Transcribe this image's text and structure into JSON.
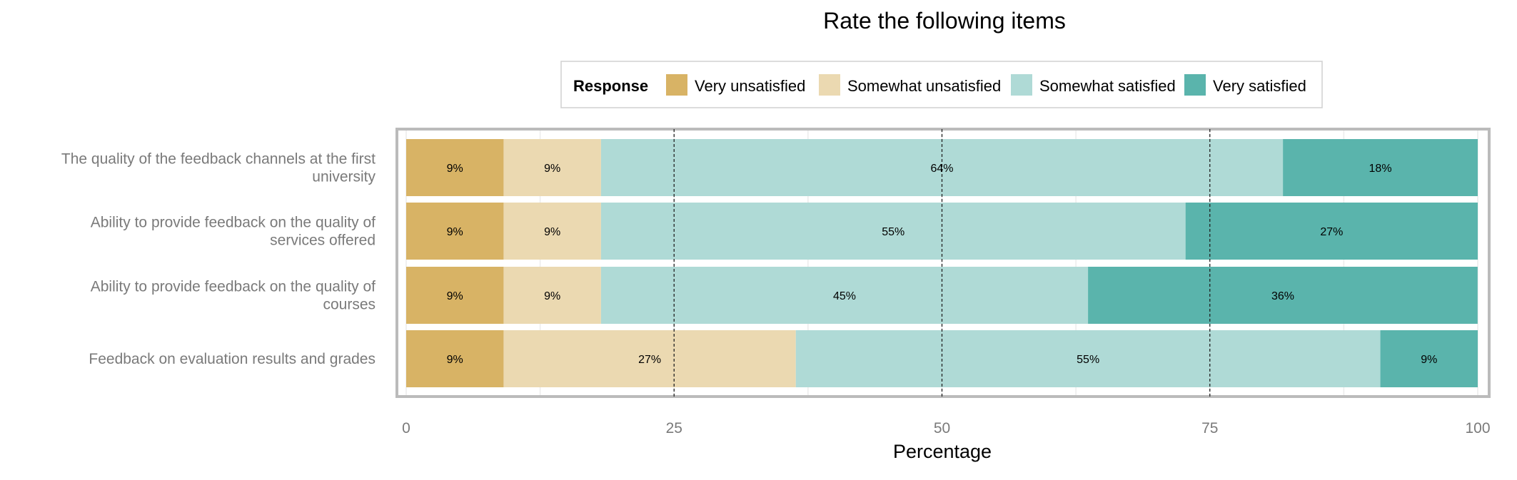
{
  "chart_data": {
    "type": "bar",
    "orientation": "horizontal",
    "stacked": true,
    "title": "Rate the following items",
    "xlabel": "Percentage",
    "ylabel": "",
    "xlim": [
      0,
      100
    ],
    "xticks": [
      0,
      25,
      50,
      75,
      100
    ],
    "grid": true,
    "legend": {
      "title": "Response",
      "position": "top",
      "entries": [
        "Very unsatisfied",
        "Somewhat unsatisfied",
        "Somewhat satisfied",
        "Very satisfied"
      ]
    },
    "colors": {
      "Very unsatisfied": "#d8b365",
      "Somewhat unsatisfied": "#ebd9b1",
      "Somewhat satisfied": "#afdad6",
      "Very satisfied": "#5ab4ac"
    },
    "categories": [
      [
        "The quality of the feedback channels at the first",
        "university"
      ],
      [
        "Ability to provide feedback on the quality of",
        "services offered"
      ],
      [
        "Ability to provide feedback on the quality of",
        "courses"
      ],
      [
        "Feedback on evaluation results and grades"
      ]
    ],
    "series": [
      {
        "name": "Very unsatisfied",
        "values": [
          9.09,
          9.09,
          9.09,
          9.09
        ],
        "labels": [
          "9%",
          "9%",
          "9%",
          "9%"
        ]
      },
      {
        "name": "Somewhat unsatisfied",
        "values": [
          9.09,
          9.09,
          9.09,
          27.27
        ],
        "labels": [
          "9%",
          "9%",
          "9%",
          "27%"
        ]
      },
      {
        "name": "Somewhat satisfied",
        "values": [
          63.64,
          54.55,
          45.45,
          54.55
        ],
        "labels": [
          "64%",
          "55%",
          "45%",
          "55%"
        ]
      },
      {
        "name": "Very satisfied",
        "values": [
          18.18,
          27.27,
          36.36,
          9.09
        ],
        "labels": [
          "18%",
          "27%",
          "36%",
          "9%"
        ]
      }
    ]
  }
}
